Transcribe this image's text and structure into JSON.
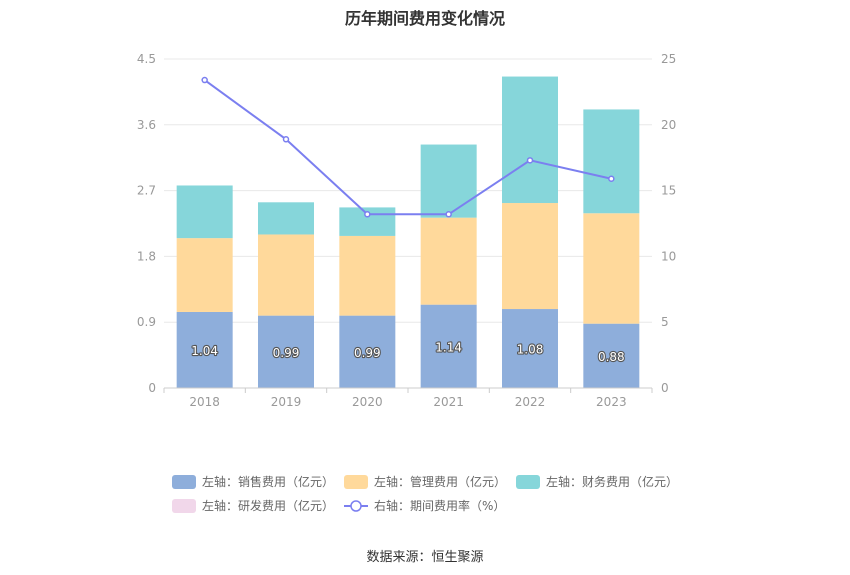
{
  "title": "历年期间费用变化情况",
  "source": "数据来源：恒生聚源",
  "colors": {
    "sales": "#8eaedb",
    "admin": "#ffd99b",
    "finance": "#86d6da",
    "rd": "#f1d7ea",
    "rate": "#7b7ff0",
    "axis_text": "#999999",
    "grid": "#e8e8e8"
  },
  "chart_data": {
    "type": "bar",
    "stacked": true,
    "categories": [
      "2018",
      "2019",
      "2020",
      "2021",
      "2022",
      "2023"
    ],
    "left_axis": {
      "min": 0,
      "max": 4.5,
      "ticks": [
        "0",
        "0.9",
        "1.8",
        "2.7",
        "3.6",
        "4.5"
      ]
    },
    "right_axis": {
      "min": 0,
      "max": 25,
      "ticks": [
        "0",
        "5",
        "10",
        "15",
        "20",
        "25"
      ]
    },
    "series": [
      {
        "name": "左轴：销售费用（亿元）",
        "key": "sales",
        "axis": "left",
        "values": [
          1.04,
          0.99,
          0.99,
          1.14,
          1.08,
          0.88
        ],
        "labels": [
          "1.04",
          "0.99",
          "0.99",
          "1.14",
          "1.08",
          "0.88"
        ]
      },
      {
        "name": "左轴：管理费用（亿元）",
        "key": "admin",
        "axis": "left",
        "values": [
          1.01,
          1.11,
          1.09,
          1.19,
          1.45,
          1.51
        ]
      },
      {
        "name": "左轴：财务费用（亿元）",
        "key": "finance",
        "axis": "left",
        "values": [
          0.72,
          0.44,
          0.39,
          1.0,
          1.73,
          1.42
        ]
      },
      {
        "name": "左轴：研发费用（亿元）",
        "key": "rd",
        "axis": "left",
        "values": [
          0,
          0,
          0,
          0,
          0,
          0
        ]
      },
      {
        "name": "右轴：期间费用率（%）",
        "key": "rate",
        "axis": "right",
        "type": "line",
        "values": [
          23.4,
          18.9,
          13.2,
          13.2,
          17.3,
          15.9
        ]
      }
    ],
    "grid": true,
    "legend_position": "bottom"
  }
}
